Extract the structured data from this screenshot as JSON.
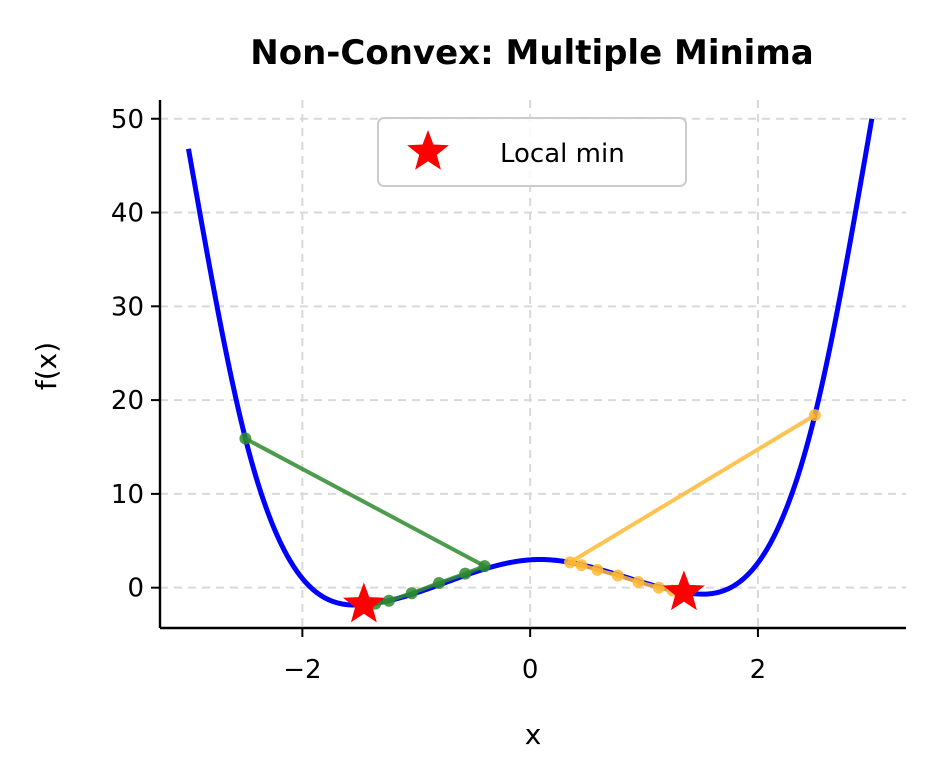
{
  "chart_data": {
    "type": "line",
    "title": "Non-Convex: Multiple Minima",
    "xlabel": "x",
    "ylabel": "f(x)",
    "xlim": [
      -3.25,
      3.3
    ],
    "ylim": [
      -4.3,
      52
    ],
    "xticks": [
      -2,
      0,
      2
    ],
    "xtick_labels": [
      "−2",
      "0",
      "2"
    ],
    "yticks": [
      0,
      10,
      20,
      30,
      40,
      50
    ],
    "ytick_labels": [
      "0",
      "10",
      "20",
      "30",
      "40",
      "50"
    ],
    "grid": true,
    "legend_position": "upper center",
    "legend": [
      {
        "label": "Local min",
        "marker": "star",
        "color": "#ff0000"
      }
    ],
    "function": {
      "color": "#0000ff",
      "x_range": [
        -3,
        3
      ],
      "description_points": [
        {
          "x": -3.0,
          "y": 46.8
        },
        {
          "x": -2.5,
          "y": 15.9
        },
        {
          "x": -1.45,
          "y": -1.8
        },
        {
          "x": 0.05,
          "y": 3.0
        },
        {
          "x": 1.35,
          "y": -0.5
        },
        {
          "x": 2.5,
          "y": 18.4
        },
        {
          "x": 3.0,
          "y": 50.0
        }
      ]
    },
    "series": [
      {
        "color": "#2e8b2e",
        "points": [
          {
            "x": -2.5,
            "y": 15.9
          },
          {
            "x": -0.4,
            "y": 2.3
          },
          {
            "x": -0.57,
            "y": 1.5
          },
          {
            "x": -0.8,
            "y": 0.5
          },
          {
            "x": -1.04,
            "y": -0.6
          },
          {
            "x": -1.24,
            "y": -1.4
          },
          {
            "x": -1.36,
            "y": -1.7
          },
          {
            "x": -1.42,
            "y": -1.8
          },
          {
            "x": -1.45,
            "y": -1.8
          }
        ]
      },
      {
        "color": "#ffb833",
        "points": [
          {
            "x": 2.5,
            "y": 18.4
          },
          {
            "x": 0.35,
            "y": 2.7
          },
          {
            "x": 0.45,
            "y": 2.4
          },
          {
            "x": 0.59,
            "y": 1.9
          },
          {
            "x": 0.77,
            "y": 1.3
          },
          {
            "x": 0.95,
            "y": 0.6
          },
          {
            "x": 1.13,
            "y": 0.0
          },
          {
            "x": 1.25,
            "y": -0.3
          },
          {
            "x": 1.31,
            "y": -0.45
          },
          {
            "x": 1.34,
            "y": -0.5
          },
          {
            "x": 1.35,
            "y": -0.5
          }
        ]
      }
    ],
    "local_minima": [
      {
        "x": -1.46,
        "y": -1.8
      },
      {
        "x": 1.35,
        "y": -0.5
      }
    ]
  }
}
